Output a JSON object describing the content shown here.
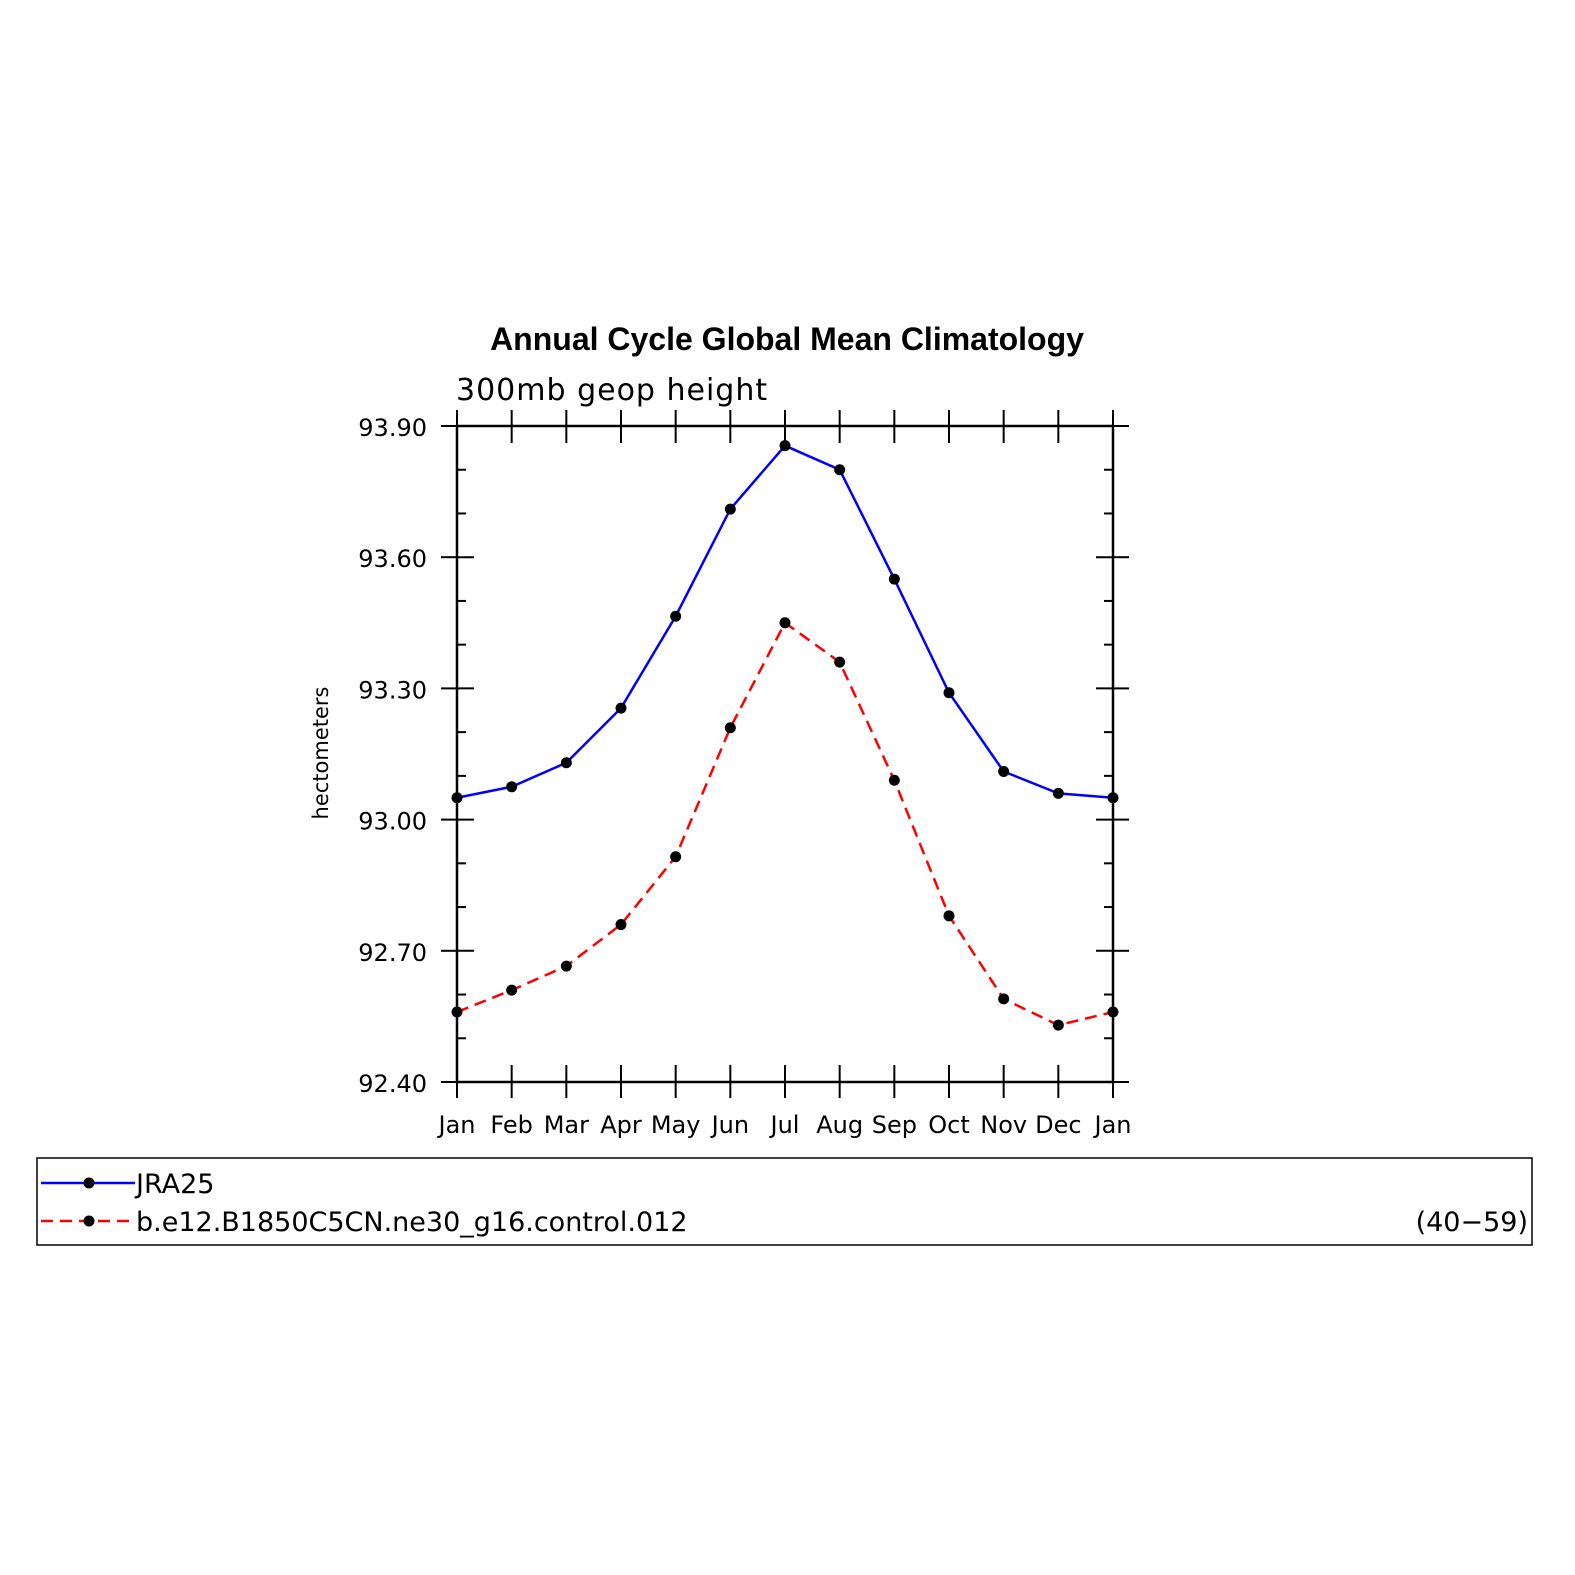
{
  "chart_data": {
    "type": "line",
    "title": "Annual Cycle Global Mean Climatology",
    "subtitle": "300mb geop height",
    "xlabel": "",
    "ylabel": "hectometers",
    "categories": [
      "Jan",
      "Feb",
      "Mar",
      "Apr",
      "May",
      "Jun",
      "Jul",
      "Aug",
      "Sep",
      "Oct",
      "Nov",
      "Dec",
      "Jan"
    ],
    "ylim": [
      92.4,
      93.9
    ],
    "yticks": [
      "92.40",
      "92.70",
      "93.00",
      "93.30",
      "93.60",
      "93.90"
    ],
    "grid": false,
    "legend_position": "bottom",
    "series": [
      {
        "name": "JRA25",
        "color": "#0000ff",
        "line_style": "solid",
        "values": [
          93.05,
          93.075,
          93.13,
          93.255,
          93.465,
          93.71,
          93.855,
          93.8,
          93.55,
          93.29,
          93.11,
          93.06,
          93.05
        ]
      },
      {
        "name": "b.e12.B1850C5CN.ne30_g16.control.012",
        "color": "#ff0000",
        "line_style": "dashed",
        "values": [
          92.56,
          92.61,
          92.665,
          92.76,
          92.915,
          93.21,
          93.45,
          93.36,
          93.09,
          92.78,
          92.59,
          92.53,
          92.56
        ]
      }
    ],
    "legend_note": "(40−59)"
  }
}
